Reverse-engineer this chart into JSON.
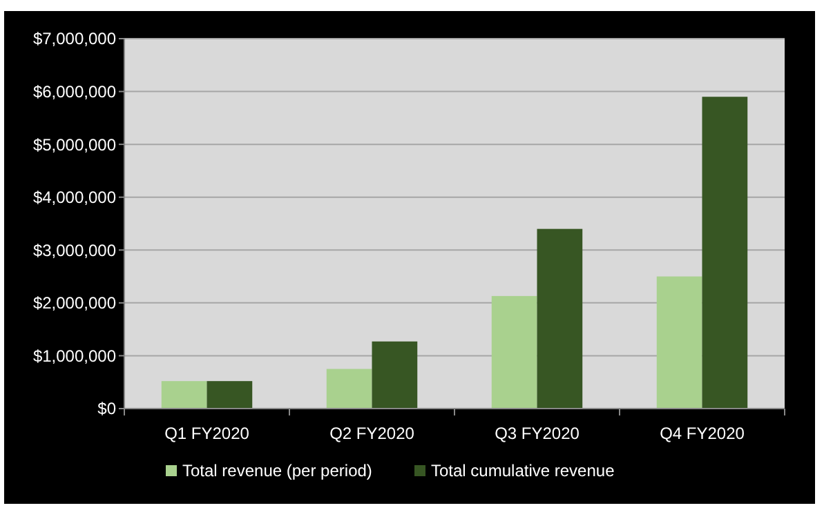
{
  "chart_data": {
    "type": "bar",
    "categories": [
      "Q1 FY2020",
      "Q2 FY2020",
      "Q3 FY2020",
      "Q4 FY2020"
    ],
    "series": [
      {
        "name": "Total revenue (per period)",
        "color": "#a9d18e",
        "values": [
          520000,
          750000,
          2130000,
          2500000
        ]
      },
      {
        "name": "Total cumulative revenue",
        "color": "#375623",
        "values": [
          520000,
          1270000,
          3400000,
          5900000
        ]
      }
    ],
    "ylim": [
      0,
      7000000
    ],
    "yticks": [
      {
        "value": 0,
        "label": "$0"
      },
      {
        "value": 1000000,
        "label": "$1,000,000"
      },
      {
        "value": 2000000,
        "label": "$2,000,000"
      },
      {
        "value": 3000000,
        "label": "$3,000,000"
      },
      {
        "value": 4000000,
        "label": "$4,000,000"
      },
      {
        "value": 5000000,
        "label": "$5,000,000"
      },
      {
        "value": 6000000,
        "label": "$6,000,000"
      },
      {
        "value": 7000000,
        "label": "$7,000,000"
      }
    ],
    "grid": "y",
    "legend": "bottom"
  }
}
